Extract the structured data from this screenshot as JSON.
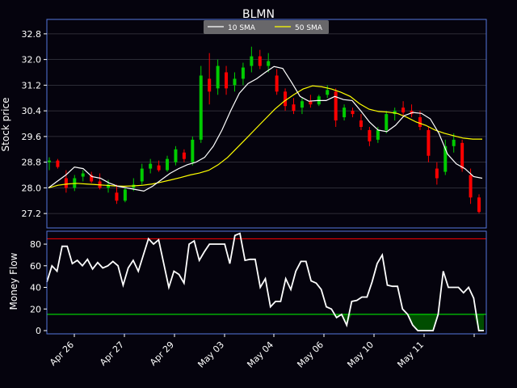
{
  "chart_data": {
    "type": "candlestick",
    "title": "BLMN",
    "upper_panel": {
      "ylabel": "Stock price",
      "ylim": [
        26.75,
        33.25
      ],
      "yticks": [
        27.2,
        28.0,
        28.8,
        29.6,
        30.4,
        31.2,
        32.0,
        32.8
      ],
      "ytick_labels": [
        "27.2",
        "28.0",
        "28.8",
        "29.6",
        "30.4",
        "31.2",
        "32.0",
        "32.8"
      ],
      "grid": true,
      "legend": {
        "placement": "top-center",
        "entries": [
          {
            "name": "10 SMA",
            "color": "#ffffff"
          },
          {
            "name": "50 SMA",
            "color": "#ffff00"
          }
        ]
      },
      "up_color": "#00cc00",
      "down_color": "#ff0000",
      "sma10": [
        28.0,
        28.2,
        28.4,
        28.65,
        28.6,
        28.35,
        28.3,
        28.15,
        28.05,
        28.0,
        27.95,
        27.9,
        28.05,
        28.25,
        28.45,
        28.6,
        28.72,
        28.8,
        28.95,
        29.3,
        29.8,
        30.4,
        30.95,
        31.25,
        31.4,
        31.6,
        31.78,
        31.72,
        31.3,
        30.85,
        30.7,
        30.72,
        30.72,
        30.85,
        30.75,
        30.72,
        30.4,
        30.05,
        29.8,
        29.75,
        29.95,
        30.25,
        30.35,
        30.32,
        30.15,
        29.7,
        29.05,
        28.75,
        28.6,
        28.35,
        28.3
      ],
      "sma50": [
        28.0,
        28.08,
        28.12,
        28.14,
        28.12,
        28.1,
        28.08,
        28.06,
        28.05,
        28.06,
        28.08,
        28.12,
        28.18,
        28.25,
        28.32,
        28.4,
        28.46,
        28.55,
        28.72,
        28.95,
        29.25,
        29.55,
        29.85,
        30.15,
        30.45,
        30.7,
        30.9,
        31.08,
        31.18,
        31.15,
        31.08,
        30.98,
        30.85,
        30.62,
        30.45,
        30.38,
        30.36,
        30.32,
        30.2,
        30.05,
        29.95,
        29.8,
        29.7,
        29.62,
        29.55,
        29.52,
        29.52
      ],
      "candles": [
        {
          "o": 28.8,
          "h": 28.95,
          "l": 28.55,
          "c": 28.85
        },
        {
          "o": 28.85,
          "h": 28.9,
          "l": 28.6,
          "c": 28.65
        },
        {
          "o": 28.3,
          "h": 28.55,
          "l": 27.85,
          "c": 28.0
        },
        {
          "o": 28.0,
          "h": 28.4,
          "l": 27.9,
          "c": 28.3
        },
        {
          "o": 28.35,
          "h": 28.55,
          "l": 28.2,
          "c": 28.45
        },
        {
          "o": 28.4,
          "h": 28.5,
          "l": 28.15,
          "c": 28.2
        },
        {
          "o": 28.2,
          "h": 28.45,
          "l": 27.95,
          "c": 28.0
        },
        {
          "o": 28.0,
          "h": 28.25,
          "l": 27.85,
          "c": 28.1
        },
        {
          "o": 27.85,
          "h": 28.1,
          "l": 27.5,
          "c": 27.6
        },
        {
          "o": 27.6,
          "h": 28.0,
          "l": 27.55,
          "c": 27.95
        },
        {
          "o": 28.0,
          "h": 28.3,
          "l": 27.9,
          "c": 28.1
        },
        {
          "o": 28.2,
          "h": 28.75,
          "l": 28.1,
          "c": 28.6
        },
        {
          "o": 28.6,
          "h": 28.9,
          "l": 28.45,
          "c": 28.75
        },
        {
          "o": 28.7,
          "h": 28.85,
          "l": 28.5,
          "c": 28.55
        },
        {
          "o": 28.55,
          "h": 29.0,
          "l": 28.5,
          "c": 28.9
        },
        {
          "o": 28.8,
          "h": 29.3,
          "l": 28.7,
          "c": 29.2
        },
        {
          "o": 29.1,
          "h": 29.2,
          "l": 28.8,
          "c": 28.9
        },
        {
          "o": 28.8,
          "h": 29.6,
          "l": 28.7,
          "c": 29.5
        },
        {
          "o": 29.5,
          "h": 31.8,
          "l": 29.4,
          "c": 31.5
        },
        {
          "o": 31.4,
          "h": 32.2,
          "l": 30.6,
          "c": 31.0
        },
        {
          "o": 31.1,
          "h": 32.0,
          "l": 30.9,
          "c": 31.8
        },
        {
          "o": 31.6,
          "h": 31.8,
          "l": 30.9,
          "c": 31.1
        },
        {
          "o": 31.2,
          "h": 31.6,
          "l": 31.0,
          "c": 31.4
        },
        {
          "o": 31.4,
          "h": 31.9,
          "l": 31.2,
          "c": 31.75
        },
        {
          "o": 31.8,
          "h": 32.4,
          "l": 31.6,
          "c": 32.1
        },
        {
          "o": 32.1,
          "h": 32.3,
          "l": 31.7,
          "c": 31.8
        },
        {
          "o": 31.8,
          "h": 32.2,
          "l": 31.6,
          "c": 31.95
        },
        {
          "o": 31.5,
          "h": 31.7,
          "l": 30.9,
          "c": 31.0
        },
        {
          "o": 31.0,
          "h": 31.1,
          "l": 30.4,
          "c": 30.55
        },
        {
          "o": 30.6,
          "h": 30.8,
          "l": 30.3,
          "c": 30.4
        },
        {
          "o": 30.5,
          "h": 30.8,
          "l": 30.3,
          "c": 30.7
        },
        {
          "o": 30.7,
          "h": 30.9,
          "l": 30.5,
          "c": 30.6
        },
        {
          "o": 30.6,
          "h": 30.9,
          "l": 30.55,
          "c": 30.85
        },
        {
          "o": 30.9,
          "h": 31.2,
          "l": 30.8,
          "c": 31.05
        },
        {
          "o": 31.0,
          "h": 31.1,
          "l": 29.9,
          "c": 30.1
        },
        {
          "o": 30.2,
          "h": 30.6,
          "l": 30.1,
          "c": 30.5
        },
        {
          "o": 30.4,
          "h": 30.5,
          "l": 30.2,
          "c": 30.3
        },
        {
          "o": 30.1,
          "h": 30.3,
          "l": 29.8,
          "c": 29.9
        },
        {
          "o": 29.8,
          "h": 29.9,
          "l": 29.3,
          "c": 29.45
        },
        {
          "o": 29.5,
          "h": 29.9,
          "l": 29.4,
          "c": 29.8
        },
        {
          "o": 29.8,
          "h": 30.4,
          "l": 29.7,
          "c": 30.3
        },
        {
          "o": 30.3,
          "h": 30.5,
          "l": 30.1,
          "c": 30.4
        },
        {
          "o": 30.5,
          "h": 30.7,
          "l": 30.25,
          "c": 30.35
        },
        {
          "o": 30.4,
          "h": 30.6,
          "l": 30.2,
          "c": 30.3
        },
        {
          "o": 30.2,
          "h": 30.4,
          "l": 29.8,
          "c": 29.9
        },
        {
          "o": 29.8,
          "h": 29.9,
          "l": 28.8,
          "c": 29.0
        },
        {
          "o": 28.6,
          "h": 28.8,
          "l": 28.1,
          "c": 28.3
        },
        {
          "o": 28.5,
          "h": 29.5,
          "l": 28.4,
          "c": 29.3
        },
        {
          "o": 29.3,
          "h": 29.7,
          "l": 29.1,
          "c": 29.5
        },
        {
          "o": 29.4,
          "h": 29.5,
          "l": 28.5,
          "c": 28.6
        },
        {
          "o": 28.4,
          "h": 28.6,
          "l": 27.5,
          "c": 27.7
        },
        {
          "o": 27.7,
          "h": 27.8,
          "l": 27.2,
          "c": 27.25
        }
      ]
    },
    "lower_panel": {
      "ylabel": "Money Flow",
      "ylim": [
        -3,
        92
      ],
      "yticks": [
        0,
        20,
        40,
        60,
        80
      ],
      "ytick_labels": [
        "0",
        "20",
        "40",
        "60",
        "80"
      ],
      "overbought": 85,
      "oversold": 15,
      "overbought_color": "#ff0000",
      "oversold_color": "#00ff00",
      "fill_color": "#004d00",
      "mfi": [
        45,
        60,
        55,
        78,
        78,
        62,
        65,
        60,
        66,
        57,
        63,
        58,
        60,
        64,
        60,
        42,
        58,
        65,
        55,
        70,
        85,
        80,
        84,
        62,
        40,
        55,
        52,
        44,
        80,
        83,
        65,
        73,
        80,
        80,
        80,
        80,
        62,
        88,
        90,
        65,
        66,
        66,
        40,
        48,
        22,
        27,
        27,
        48,
        38,
        55,
        64,
        64,
        46,
        44,
        38,
        22,
        20,
        12,
        15,
        5,
        27,
        28,
        31,
        31,
        45,
        62,
        70,
        42,
        41,
        41,
        20,
        15,
        5,
        0,
        0,
        0,
        0,
        15,
        55,
        40,
        40,
        40,
        35,
        40,
        30,
        0,
        0
      ]
    },
    "x_tick_labels": [
      "Apr 26",
      "Apr 27",
      "Apr 29",
      "May 03",
      "May 04",
      "May 06",
      "May 10",
      "May 11"
    ],
    "series": [
      {
        "name": "10 SMA"
      },
      {
        "name": "50 SMA"
      }
    ]
  }
}
